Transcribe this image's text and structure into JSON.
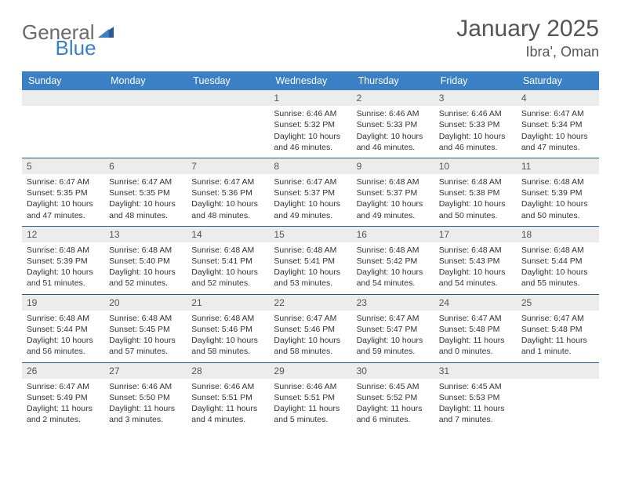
{
  "logo": {
    "text1": "General",
    "text2": "Blue"
  },
  "title": "January 2025",
  "location": "Ibra', Oman",
  "header_bg": "#3b7fc4",
  "divider_color": "#2b5a8a",
  "daynum_bg": "#ececec",
  "day_names": [
    "Sunday",
    "Monday",
    "Tuesday",
    "Wednesday",
    "Thursday",
    "Friday",
    "Saturday"
  ],
  "weeks": [
    [
      null,
      null,
      null,
      {
        "d": "1",
        "sr": "Sunrise: 6:46 AM",
        "ss": "Sunset: 5:32 PM",
        "dl": "Daylight: 10 hours and 46 minutes."
      },
      {
        "d": "2",
        "sr": "Sunrise: 6:46 AM",
        "ss": "Sunset: 5:33 PM",
        "dl": "Daylight: 10 hours and 46 minutes."
      },
      {
        "d": "3",
        "sr": "Sunrise: 6:46 AM",
        "ss": "Sunset: 5:33 PM",
        "dl": "Daylight: 10 hours and 46 minutes."
      },
      {
        "d": "4",
        "sr": "Sunrise: 6:47 AM",
        "ss": "Sunset: 5:34 PM",
        "dl": "Daylight: 10 hours and 47 minutes."
      }
    ],
    [
      {
        "d": "5",
        "sr": "Sunrise: 6:47 AM",
        "ss": "Sunset: 5:35 PM",
        "dl": "Daylight: 10 hours and 47 minutes."
      },
      {
        "d": "6",
        "sr": "Sunrise: 6:47 AM",
        "ss": "Sunset: 5:35 PM",
        "dl": "Daylight: 10 hours and 48 minutes."
      },
      {
        "d": "7",
        "sr": "Sunrise: 6:47 AM",
        "ss": "Sunset: 5:36 PM",
        "dl": "Daylight: 10 hours and 48 minutes."
      },
      {
        "d": "8",
        "sr": "Sunrise: 6:47 AM",
        "ss": "Sunset: 5:37 PM",
        "dl": "Daylight: 10 hours and 49 minutes."
      },
      {
        "d": "9",
        "sr": "Sunrise: 6:48 AM",
        "ss": "Sunset: 5:37 PM",
        "dl": "Daylight: 10 hours and 49 minutes."
      },
      {
        "d": "10",
        "sr": "Sunrise: 6:48 AM",
        "ss": "Sunset: 5:38 PM",
        "dl": "Daylight: 10 hours and 50 minutes."
      },
      {
        "d": "11",
        "sr": "Sunrise: 6:48 AM",
        "ss": "Sunset: 5:39 PM",
        "dl": "Daylight: 10 hours and 50 minutes."
      }
    ],
    [
      {
        "d": "12",
        "sr": "Sunrise: 6:48 AM",
        "ss": "Sunset: 5:39 PM",
        "dl": "Daylight: 10 hours and 51 minutes."
      },
      {
        "d": "13",
        "sr": "Sunrise: 6:48 AM",
        "ss": "Sunset: 5:40 PM",
        "dl": "Daylight: 10 hours and 52 minutes."
      },
      {
        "d": "14",
        "sr": "Sunrise: 6:48 AM",
        "ss": "Sunset: 5:41 PM",
        "dl": "Daylight: 10 hours and 52 minutes."
      },
      {
        "d": "15",
        "sr": "Sunrise: 6:48 AM",
        "ss": "Sunset: 5:41 PM",
        "dl": "Daylight: 10 hours and 53 minutes."
      },
      {
        "d": "16",
        "sr": "Sunrise: 6:48 AM",
        "ss": "Sunset: 5:42 PM",
        "dl": "Daylight: 10 hours and 54 minutes."
      },
      {
        "d": "17",
        "sr": "Sunrise: 6:48 AM",
        "ss": "Sunset: 5:43 PM",
        "dl": "Daylight: 10 hours and 54 minutes."
      },
      {
        "d": "18",
        "sr": "Sunrise: 6:48 AM",
        "ss": "Sunset: 5:44 PM",
        "dl": "Daylight: 10 hours and 55 minutes."
      }
    ],
    [
      {
        "d": "19",
        "sr": "Sunrise: 6:48 AM",
        "ss": "Sunset: 5:44 PM",
        "dl": "Daylight: 10 hours and 56 minutes."
      },
      {
        "d": "20",
        "sr": "Sunrise: 6:48 AM",
        "ss": "Sunset: 5:45 PM",
        "dl": "Daylight: 10 hours and 57 minutes."
      },
      {
        "d": "21",
        "sr": "Sunrise: 6:48 AM",
        "ss": "Sunset: 5:46 PM",
        "dl": "Daylight: 10 hours and 58 minutes."
      },
      {
        "d": "22",
        "sr": "Sunrise: 6:47 AM",
        "ss": "Sunset: 5:46 PM",
        "dl": "Daylight: 10 hours and 58 minutes."
      },
      {
        "d": "23",
        "sr": "Sunrise: 6:47 AM",
        "ss": "Sunset: 5:47 PM",
        "dl": "Daylight: 10 hours and 59 minutes."
      },
      {
        "d": "24",
        "sr": "Sunrise: 6:47 AM",
        "ss": "Sunset: 5:48 PM",
        "dl": "Daylight: 11 hours and 0 minutes."
      },
      {
        "d": "25",
        "sr": "Sunrise: 6:47 AM",
        "ss": "Sunset: 5:48 PM",
        "dl": "Daylight: 11 hours and 1 minute."
      }
    ],
    [
      {
        "d": "26",
        "sr": "Sunrise: 6:47 AM",
        "ss": "Sunset: 5:49 PM",
        "dl": "Daylight: 11 hours and 2 minutes."
      },
      {
        "d": "27",
        "sr": "Sunrise: 6:46 AM",
        "ss": "Sunset: 5:50 PM",
        "dl": "Daylight: 11 hours and 3 minutes."
      },
      {
        "d": "28",
        "sr": "Sunrise: 6:46 AM",
        "ss": "Sunset: 5:51 PM",
        "dl": "Daylight: 11 hours and 4 minutes."
      },
      {
        "d": "29",
        "sr": "Sunrise: 6:46 AM",
        "ss": "Sunset: 5:51 PM",
        "dl": "Daylight: 11 hours and 5 minutes."
      },
      {
        "d": "30",
        "sr": "Sunrise: 6:45 AM",
        "ss": "Sunset: 5:52 PM",
        "dl": "Daylight: 11 hours and 6 minutes."
      },
      {
        "d": "31",
        "sr": "Sunrise: 6:45 AM",
        "ss": "Sunset: 5:53 PM",
        "dl": "Daylight: 11 hours and 7 minutes."
      },
      null
    ]
  ]
}
